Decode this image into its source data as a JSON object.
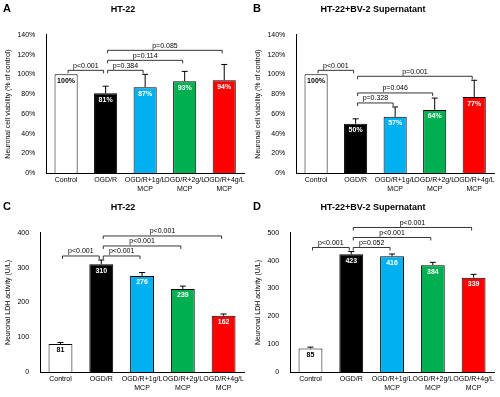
{
  "chart_data": [
    {
      "type": "bar",
      "panel": "A",
      "title": "HT-22",
      "y_label": "Neuronal cell viability (% of control)",
      "categories": [
        "Control",
        "OGD/R",
        "OGD/R+1g/L MCP",
        "OGD/R+2g/L MCP",
        "OGD/R+4g/L MCP"
      ],
      "values": [
        100,
        81,
        87,
        93,
        94
      ],
      "value_labels": [
        "100%",
        "81%",
        "87%",
        "93%",
        "94%"
      ],
      "errors": [
        0,
        7,
        13,
        10,
        16
      ],
      "colors": [
        "#ffffff",
        "#000000",
        "#00b0f0",
        "#00b050",
        "#ff0000"
      ],
      "ylim": [
        0,
        140
      ],
      "yticks": [
        {
          "value": 0,
          "label": "0%"
        },
        {
          "value": 20,
          "label": "20%"
        },
        {
          "value": 40,
          "label": "40%"
        },
        {
          "value": 60,
          "label": "60%"
        },
        {
          "value": 80,
          "label": "80%"
        },
        {
          "value": 100,
          "label": "100%"
        },
        {
          "value": 120,
          "label": "120%"
        },
        {
          "value": 140,
          "label": "140%"
        }
      ],
      "grid": false,
      "data_labels": true,
      "annotations": [
        {
          "text": "p<0.001",
          "between": [
            "Control",
            "OGD/R"
          ]
        },
        {
          "text": "p=0.384",
          "between": [
            "OGD/R",
            "OGD/R+1g/L MCP"
          ]
        },
        {
          "text": "p=0.114",
          "between": [
            "OGD/R",
            "OGD/R+2g/L MCP"
          ]
        },
        {
          "text": "p=0.085",
          "between": [
            "OGD/R",
            "OGD/R+4g/L MCP"
          ]
        }
      ]
    },
    {
      "type": "bar",
      "panel": "B",
      "title": "HT-22+BV-2 Supernatant",
      "y_label": "Neuronal cell viability (% of control)",
      "categories": [
        "Control",
        "OGD/R",
        "OGD/R+1g/L MCP",
        "OGD/R+2g/L MCP",
        "OGD/R+4g/L MCP"
      ],
      "values": [
        100,
        50,
        57,
        64,
        77
      ],
      "value_labels": [
        "100%",
        "50%",
        "57%",
        "64%",
        "77%"
      ],
      "errors": [
        0,
        5,
        10,
        12,
        17
      ],
      "colors": [
        "#ffffff",
        "#000000",
        "#00b0f0",
        "#00b050",
        "#ff0000"
      ],
      "ylim": [
        0,
        140
      ],
      "yticks": [
        {
          "value": 0,
          "label": "0%"
        },
        {
          "value": 20,
          "label": "20%"
        },
        {
          "value": 40,
          "label": "40%"
        },
        {
          "value": 60,
          "label": "60%"
        },
        {
          "value": 80,
          "label": "80%"
        },
        {
          "value": 100,
          "label": "100%"
        },
        {
          "value": 120,
          "label": "120%"
        },
        {
          "value": 140,
          "label": "140%"
        }
      ],
      "grid": false,
      "data_labels": true,
      "annotations": [
        {
          "text": "p<0.001",
          "between": [
            "Control",
            "OGD/R"
          ]
        },
        {
          "text": "p=0.328",
          "between": [
            "OGD/R",
            "OGD/R+1g/L MCP"
          ]
        },
        {
          "text": "p=0.046",
          "between": [
            "OGD/R",
            "OGD/R+2g/L MCP"
          ]
        },
        {
          "text": "p=0.001",
          "between": [
            "OGD/R",
            "OGD/R+4g/L MCP"
          ]
        }
      ]
    },
    {
      "type": "bar",
      "panel": "C",
      "title": "HT-22",
      "y_label": "Neuronal LDH activity (U/L)",
      "categories": [
        "Control",
        "OGD/R",
        "OGD/R+1g/L MCP",
        "OGD/R+2g/L MCP",
        "OGD/R+4g/L MCP"
      ],
      "values": [
        81,
        310,
        276,
        239,
        162
      ],
      "errors": [
        4,
        12,
        10,
        8,
        5
      ],
      "colors": [
        "#ffffff",
        "#000000",
        "#00b0f0",
        "#00b050",
        "#ff0000"
      ],
      "ylim": [
        0,
        400
      ],
      "yticks": [
        0,
        100,
        200,
        300,
        400
      ],
      "grid": false,
      "data_labels": true,
      "annotations": [
        {
          "text": "p<0.001",
          "between": [
            "Control",
            "OGD/R"
          ]
        },
        {
          "text": "p<0.001",
          "between": [
            "OGD/R",
            "OGD/R+1g/L MCP"
          ]
        },
        {
          "text": "p<0.001",
          "between": [
            "OGD/R",
            "OGD/R+2g/L MCP"
          ]
        },
        {
          "text": "p<0.001",
          "between": [
            "OGD/R",
            "OGD/R+4g/L MCP"
          ]
        }
      ]
    },
    {
      "type": "bar",
      "panel": "D",
      "title": "HT-22+BV-2 Supernatant",
      "y_label": "Neuronal LDH activity (U/L)",
      "categories": [
        "Control",
        "OGD/R",
        "OGD/R+1g/L MCP",
        "OGD/R+2g/L MCP",
        "OGD/R+4g/L MCP"
      ],
      "values": [
        85,
        423,
        416,
        384,
        339
      ],
      "errors": [
        5,
        10,
        8,
        10,
        12
      ],
      "colors": [
        "#ffffff",
        "#000000",
        "#00b0f0",
        "#00b050",
        "#ff0000"
      ],
      "ylim": [
        0,
        500
      ],
      "yticks": [
        0,
        100,
        200,
        300,
        400,
        500
      ],
      "grid": false,
      "data_labels": true,
      "annotations": [
        {
          "text": "p<0.001",
          "between": [
            "Control",
            "OGD/R"
          ]
        },
        {
          "text": "p=0.052",
          "between": [
            "OGD/R",
            "OGD/R+1g/L MCP"
          ]
        },
        {
          "text": "p<0.001",
          "between": [
            "OGD/R",
            "OGD/R+2g/L MCP"
          ]
        },
        {
          "text": "p<0.001",
          "between": [
            "OGD/R",
            "OGD/R+4g/L MCP"
          ]
        }
      ]
    }
  ]
}
